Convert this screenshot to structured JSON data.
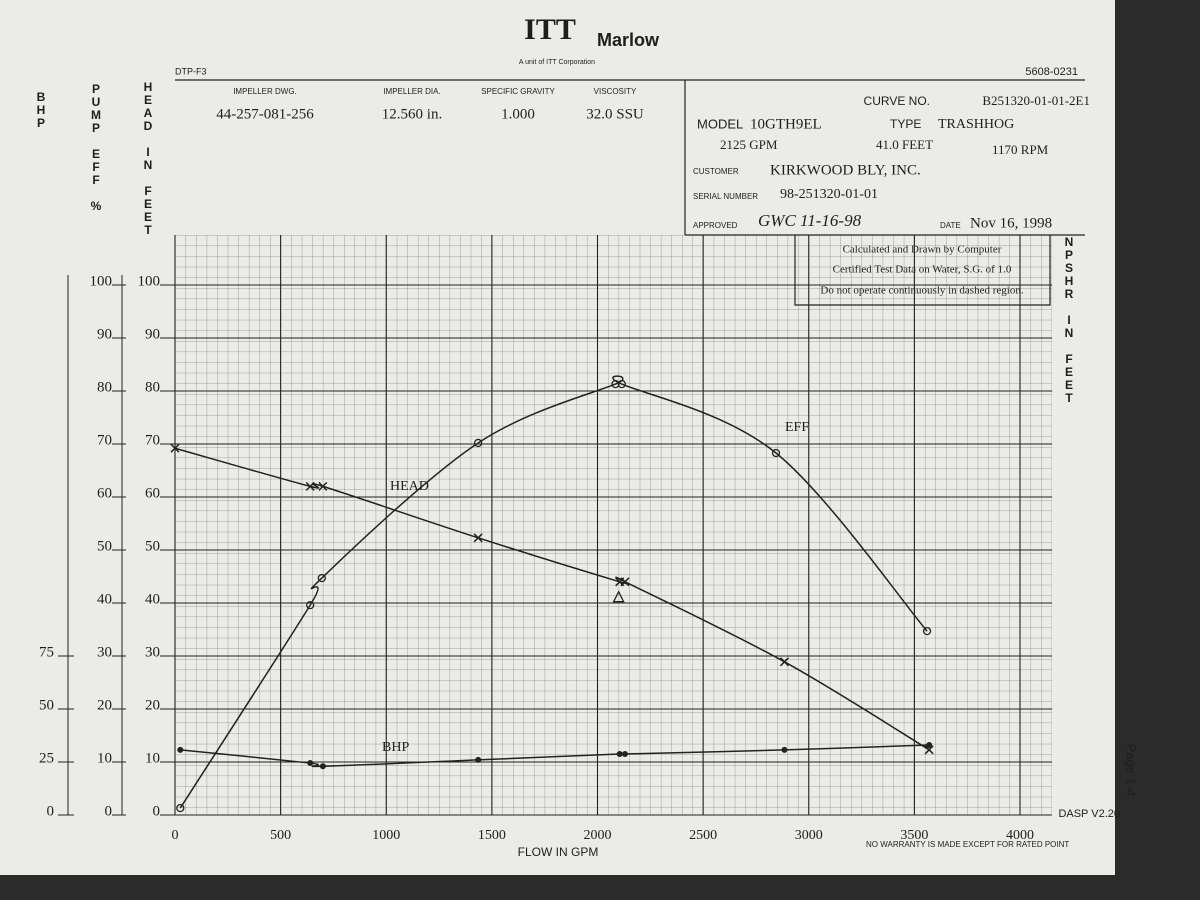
{
  "header": {
    "form": "DTP-F3",
    "doc_no": "5608-0231",
    "brand": "ITT",
    "brand_name": "Marlow",
    "brand_sub": "A unit of ITT Corporation",
    "fields": [
      {
        "label": "IMPELLER DWG.",
        "value": "44-257-081-256"
      },
      {
        "label": "IMPELLER DIA.",
        "value": "12.560 in."
      },
      {
        "label": "SPECIFIC GRAVITY",
        "value": "1.000"
      },
      {
        "label": "VISCOSITY",
        "value": "32.0 SSU"
      }
    ],
    "curve_no_label": "CURVE NO.",
    "curve_no": "B251320-01-01-2E1",
    "model_label": "MODEL",
    "model": "10GTH9EL",
    "type_label": "TYPE",
    "type": "TRASHHOG",
    "flow": "2125 GPM",
    "head": "41.0 FEET",
    "speed": "1170 RPM",
    "customer_label": "CUSTOMER",
    "customer": "KIRKWOOD BLY, INC.",
    "serial_label": "SERIAL NUMBER",
    "serial": "98-251320-01-01",
    "approved_label": "APPROVED",
    "approved": "GWC 11-16-98",
    "date_label": "DATE",
    "date": "Nov 16, 1998"
  },
  "notes": [
    "Calculated and Drawn by Computer",
    "Certified Test Data on Water, S.G. of 1.0",
    "Do not operate continuously in dashed region."
  ],
  "footer": {
    "software": "DASP V2.20",
    "warranty": "NO WARRANTY IS MADE EXCEPT FOR RATED POINT",
    "page": "Page 1-4"
  },
  "chart_data": {
    "type": "line",
    "x_label": "FLOW IN GPM",
    "y_label": "HEAD IN FEET",
    "y_eff_label": "PUMP EFF %",
    "y2_label": "BHP",
    "npshr_label": "NPSHR IN FEET",
    "xlim": [
      0,
      4000
    ],
    "xticks": [
      0,
      500,
      1000,
      1500,
      2000,
      2500,
      3000,
      3500,
      4000
    ],
    "ylim": [
      0,
      110
    ],
    "yticks": [
      0,
      10,
      20,
      30,
      40,
      50,
      60,
      70,
      80,
      90,
      100
    ],
    "y2lim": [
      0,
      275
    ],
    "y2ticks": [
      0,
      25,
      50,
      75
    ],
    "grid": true,
    "series": [
      {
        "name": "HEAD",
        "color": "#222222",
        "marker": "x",
        "x": [
          0,
          640,
          700,
          1435,
          2105,
          2130,
          2885,
          3570
        ],
        "values": [
          69.2,
          62,
          62,
          52.3,
          44,
          44,
          28.9,
          12.3
        ]
      },
      {
        "name": "EFF",
        "color": "#222222",
        "marker": "o",
        "x": [
          25,
          640,
          695,
          1435,
          2085,
          2115,
          2845,
          3560
        ],
        "values": [
          1.3,
          39.6,
          44.7,
          70.2,
          81.3,
          81.3,
          68.3,
          34.7
        ]
      },
      {
        "name": "BHP",
        "color": "#222222",
        "marker": "dot",
        "axis": "y2",
        "x": [
          25,
          640,
          700,
          1435,
          2105,
          2130,
          2885,
          3570
        ],
        "values": [
          30.7,
          24.5,
          23,
          26,
          28.8,
          28.8,
          30.7,
          33
        ]
      }
    ],
    "rated_point": {
      "x": 2100,
      "y": 41
    }
  }
}
